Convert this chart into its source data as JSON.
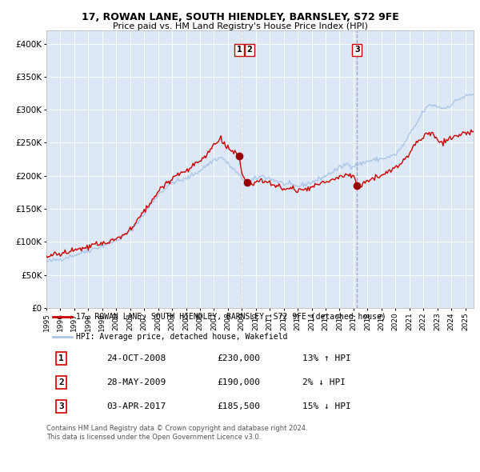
{
  "title": "17, ROWAN LANE, SOUTH HIENDLEY, BARNSLEY, S72 9FE",
  "subtitle": "Price paid vs. HM Land Registry's House Price Index (HPI)",
  "legend_line1": "17, ROWAN LANE, SOUTH HIENDLEY, BARNSLEY, S72 9FE (detached house)",
  "legend_line2": "HPI: Average price, detached house, Wakefield",
  "transactions": [
    {
      "num": "1",
      "date": "24-OCT-2008",
      "price": "£230,000",
      "hpi_diff": "13% ↑ HPI",
      "x_year": 2008.81,
      "y_val": 230000
    },
    {
      "num": "2",
      "date": "28-MAY-2009",
      "price": "£190,000",
      "hpi_diff": "2% ↓ HPI",
      "x_year": 2009.41,
      "y_val": 190000
    },
    {
      "num": "3",
      "date": "03-APR-2017",
      "price": "£185,500",
      "hpi_diff": "15% ↓ HPI",
      "x_year": 2017.25,
      "y_val": 185500
    }
  ],
  "footnote1": "Contains HM Land Registry data © Crown copyright and database right 2024.",
  "footnote2": "This data is licensed under the Open Government Licence v3.0.",
  "hpi_color": "#adc6e8",
  "price_color": "#cc0000",
  "marker_color": "#990000",
  "vline1_color": "#cc4444",
  "vline2_color": "#9999bb",
  "bg_color": "#dce8f5",
  "ylim": [
    0,
    420000
  ],
  "xlim_start": 1995.0,
  "xlim_end": 2025.6,
  "yticks": [
    0,
    50000,
    100000,
    150000,
    200000,
    250000,
    300000,
    350000,
    400000
  ],
  "ytick_labels": [
    "£0",
    "£50K",
    "£100K",
    "£150K",
    "£200K",
    "£250K",
    "£300K",
    "£350K",
    "£400K"
  ]
}
